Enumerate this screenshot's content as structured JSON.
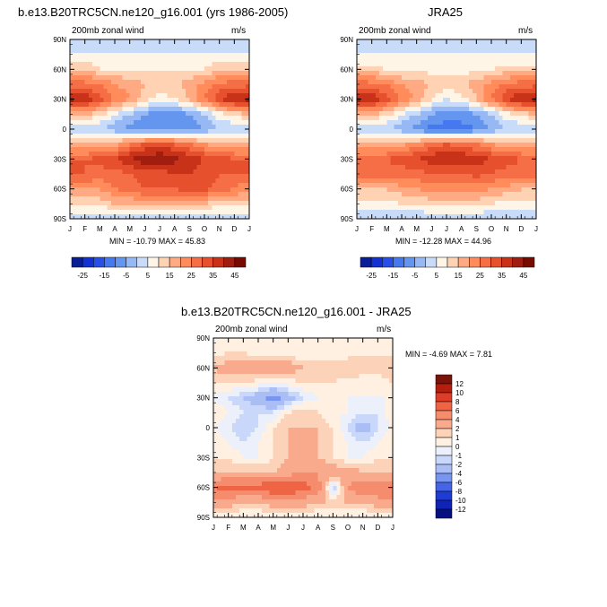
{
  "panels": [
    {
      "title": "b.e13.B20TRC5CN.ne120_g16.001 (yrs 1986-2005)",
      "subtitle_left": "200mb zonal wind",
      "subtitle_right": "m/s",
      "stats": "MIN = -10.79 MAX =  45.83"
    },
    {
      "title": "JRA25",
      "subtitle_left": "200mb zonal wind",
      "subtitle_right": "m/s",
      "stats": "MIN = -12.28 MAX =  44.96"
    },
    {
      "title": "b.e13.B20TRC5CN.ne120_g16.001 - JRA25",
      "subtitle_left": "200mb zonal wind",
      "subtitle_right": "m/s",
      "stats": "MIN =  -4.69 MAX =   7.81"
    }
  ],
  "chart_data": [
    {
      "type": "heatmap",
      "title": "b.e13.B20TRC5CN.ne120_g16.001 (yrs 1986-2005)",
      "x_ticks": [
        "J",
        "F",
        "M",
        "A",
        "M",
        "J",
        "J",
        "A",
        "S",
        "O",
        "N",
        "D",
        "J"
      ],
      "y_ticks": [
        "90N",
        "60N",
        "30N",
        "0",
        "30S",
        "60S",
        "90S"
      ],
      "units": "m/s",
      "x": [
        "Jan",
        "Feb",
        "Mar",
        "Apr",
        "May",
        "Jun",
        "Jul",
        "Aug",
        "Sep",
        "Oct",
        "Nov",
        "Dec",
        "Jan"
      ],
      "y": [
        90,
        75,
        60,
        45,
        30,
        15,
        0,
        -15,
        -30,
        -45,
        -60,
        -75,
        -90
      ],
      "values": [
        [
          0,
          0,
          0,
          0,
          0,
          0,
          0,
          0,
          0,
          0,
          0,
          0,
          0
        ],
        [
          5,
          5,
          5,
          5,
          5,
          5,
          5,
          5,
          5,
          5,
          5,
          5,
          5
        ],
        [
          15,
          15,
          10,
          10,
          10,
          10,
          10,
          10,
          10,
          10,
          15,
          15,
          15
        ],
        [
          28,
          27,
          25,
          20,
          18,
          15,
          12,
          14,
          18,
          22,
          26,
          28,
          28
        ],
        [
          42,
          40,
          32,
          25,
          20,
          12,
          8,
          10,
          15,
          25,
          35,
          40,
          42
        ],
        [
          15,
          15,
          12,
          5,
          0,
          -5,
          -8,
          -8,
          -5,
          0,
          8,
          12,
          15
        ],
        [
          0,
          0,
          0,
          -3,
          -8,
          -10,
          -10,
          -10,
          -8,
          -5,
          0,
          0,
          0
        ],
        [
          15,
          15,
          15,
          18,
          25,
          30,
          32,
          30,
          25,
          20,
          18,
          15,
          15
        ],
        [
          30,
          30,
          32,
          35,
          40,
          44,
          45,
          42,
          38,
          35,
          32,
          30,
          30
        ],
        [
          30,
          30,
          28,
          28,
          30,
          32,
          33,
          34,
          35,
          33,
          30,
          30,
          30
        ],
        [
          20,
          20,
          20,
          25,
          28,
          30,
          30,
          30,
          32,
          32,
          28,
          25,
          20
        ],
        [
          12,
          12,
          12,
          15,
          15,
          18,
          18,
          18,
          18,
          15,
          12,
          12,
          12
        ],
        [
          0,
          0,
          0,
          0,
          0,
          0,
          0,
          0,
          0,
          0,
          0,
          0,
          0
        ]
      ],
      "colorbar_labels": [
        "-25",
        "-15",
        "-5",
        "5",
        "15",
        "25",
        "35",
        "45"
      ]
    },
    {
      "type": "heatmap",
      "title": "JRA25",
      "x_ticks": [
        "J",
        "F",
        "M",
        "A",
        "M",
        "J",
        "J",
        "A",
        "S",
        "O",
        "N",
        "D",
        "J"
      ],
      "y_ticks": [
        "90N",
        "60N",
        "30N",
        "0",
        "30S",
        "60S",
        "90S"
      ],
      "units": "m/s",
      "x": [
        "Jan",
        "Feb",
        "Mar",
        "Apr",
        "May",
        "Jun",
        "Jul",
        "Aug",
        "Sep",
        "Oct",
        "Nov",
        "Dec",
        "Jan"
      ],
      "y": [
        90,
        75,
        60,
        45,
        30,
        15,
        0,
        -15,
        -30,
        -45,
        -60,
        -75,
        -90
      ],
      "values": [
        [
          0,
          0,
          0,
          0,
          0,
          0,
          0,
          0,
          0,
          0,
          0,
          0,
          0
        ],
        [
          5,
          5,
          5,
          5,
          5,
          5,
          5,
          5,
          5,
          5,
          5,
          5,
          5
        ],
        [
          12,
          12,
          10,
          8,
          8,
          8,
          8,
          8,
          8,
          10,
          12,
          12,
          12
        ],
        [
          28,
          27,
          25,
          20,
          18,
          15,
          12,
          14,
          18,
          22,
          26,
          28,
          28
        ],
        [
          42,
          40,
          32,
          25,
          18,
          10,
          5,
          8,
          15,
          25,
          35,
          40,
          42
        ],
        [
          15,
          15,
          12,
          5,
          0,
          -5,
          -8,
          -8,
          -5,
          0,
          8,
          12,
          15
        ],
        [
          0,
          0,
          0,
          -3,
          -8,
          -12,
          -12,
          -12,
          -10,
          -5,
          0,
          0,
          0
        ],
        [
          15,
          15,
          15,
          18,
          22,
          28,
          30,
          28,
          25,
          20,
          18,
          15,
          15
        ],
        [
          30,
          30,
          30,
          32,
          35,
          38,
          40,
          40,
          38,
          35,
          32,
          30,
          30
        ],
        [
          28,
          28,
          28,
          28,
          28,
          30,
          30,
          30,
          32,
          30,
          28,
          28,
          28
        ],
        [
          15,
          15,
          15,
          18,
          20,
          22,
          22,
          22,
          22,
          20,
          18,
          15,
          15
        ],
        [
          8,
          8,
          8,
          10,
          10,
          12,
          12,
          12,
          12,
          10,
          8,
          8,
          8
        ],
        [
          0,
          0,
          0,
          0,
          0,
          0,
          0,
          0,
          0,
          0,
          0,
          0,
          0
        ]
      ],
      "colorbar_labels": [
        "-25",
        "-15",
        "-5",
        "5",
        "15",
        "25",
        "35",
        "45"
      ]
    },
    {
      "type": "heatmap",
      "title": "b.e13.B20TRC5CN.ne120_g16.001 - JRA25",
      "x_ticks": [
        "J",
        "F",
        "M",
        "A",
        "M",
        "J",
        "J",
        "A",
        "S",
        "O",
        "N",
        "D",
        "J"
      ],
      "y_ticks": [
        "90N",
        "60N",
        "30N",
        "0",
        "30S",
        "60S",
        "90S"
      ],
      "units": "m/s",
      "x": [
        "Jan",
        "Feb",
        "Mar",
        "Apr",
        "May",
        "Jun",
        "Jul",
        "Aug",
        "Sep",
        "Oct",
        "Nov",
        "Dec",
        "Jan"
      ],
      "y": [
        90,
        75,
        60,
        45,
        30,
        15,
        0,
        -15,
        -30,
        -45,
        -60,
        -75,
        -90
      ],
      "values": [
        [
          0,
          0,
          0,
          0,
          0,
          0,
          0,
          0,
          0,
          0,
          0,
          0,
          0
        ],
        [
          0.5,
          1,
          1,
          0.5,
          0.5,
          0.5,
          0,
          0,
          0,
          0.5,
          0.5,
          0.5,
          0.5
        ],
        [
          2,
          3,
          3,
          3,
          3,
          3,
          2,
          2,
          2,
          2,
          2,
          2,
          2
        ],
        [
          1,
          1,
          1,
          0.5,
          0,
          0.5,
          1,
          1,
          1,
          0.5,
          0,
          0,
          1
        ],
        [
          0,
          -1,
          -2,
          -3,
          -5,
          -3,
          -1,
          0,
          0,
          0,
          0,
          0,
          0
        ],
        [
          1,
          0,
          -1,
          -1,
          -1,
          1,
          2,
          1,
          0,
          0,
          -1,
          -1,
          1
        ],
        [
          0,
          -1,
          -2,
          -1,
          1,
          2,
          2,
          2,
          1,
          -1,
          -3,
          -1,
          0
        ],
        [
          1,
          0,
          -1,
          0,
          1,
          2,
          3,
          2,
          1,
          0,
          -1,
          0,
          1
        ],
        [
          1,
          1,
          0,
          0,
          1,
          2,
          3,
          2,
          1,
          0,
          0,
          1,
          1
        ],
        [
          2,
          2,
          2,
          2,
          2,
          3,
          4,
          4,
          3,
          3,
          2,
          2,
          2
        ],
        [
          6,
          7,
          7,
          7,
          8,
          8,
          7,
          5,
          -2,
          4,
          6,
          6,
          6
        ],
        [
          3,
          3,
          2,
          2,
          3,
          3,
          3,
          2,
          2,
          2,
          2,
          3,
          3
        ],
        [
          0,
          0,
          0,
          0,
          0,
          0,
          0,
          0,
          0,
          0,
          0,
          0,
          0
        ]
      ],
      "colorbar_labels": [
        "12",
        "10",
        "8",
        "6",
        "4",
        "2",
        "1",
        "0",
        "-1",
        "-2",
        "-4",
        "-6",
        "-8",
        "-10",
        "-12"
      ]
    }
  ],
  "colors": {
    "mean_scale": [
      "#0a1e96",
      "#1432d2",
      "#2850e6",
      "#4678f0",
      "#6496f0",
      "#96b9f5",
      "#c8dcfa",
      "#fff5e6",
      "#ffd2b4",
      "#ffaa82",
      "#ff8c5a",
      "#f56e46",
      "#e6502d",
      "#c83219",
      "#a01e0f",
      "#780a00"
    ],
    "diff_scale": [
      "#78140a",
      "#b41e0f",
      "#dc3c28",
      "#f06446",
      "#f58c6e",
      "#faaa8c",
      "#fcd2b9",
      "#fff0e1",
      "#ebf0fa",
      "#c8d7fa",
      "#aabef5",
      "#7896f0",
      "#4664e6",
      "#1e3cd2",
      "#0f23b4",
      "#050f82"
    ]
  }
}
